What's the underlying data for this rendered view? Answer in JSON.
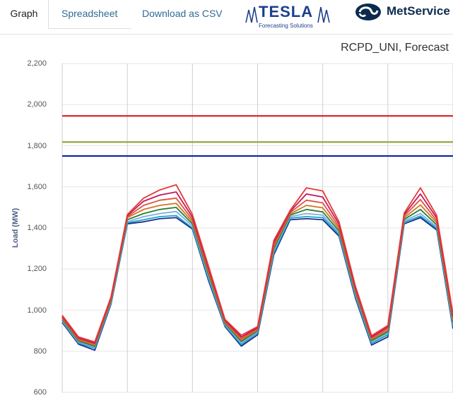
{
  "tabs": [
    {
      "label": "Graph"
    },
    {
      "label": "Spreadsheet"
    },
    {
      "label": "Download as CSV"
    }
  ],
  "logos": {
    "tesla": {
      "name": "TESLA",
      "tagline": "Forecasting Solutions"
    },
    "metservice": {
      "name": "MetService"
    }
  },
  "colors": {
    "tab_link": "#2f6b94",
    "red_line": "#d42a2a",
    "olive_line": "#98a541",
    "blue_line": "#1322a0"
  },
  "chart_data": {
    "type": "line",
    "title": "RCPD_UNI, Forecast",
    "ylabel": "Load (MW)",
    "xlabel": "",
    "ylim": [
      600,
      2200
    ],
    "yticks": [
      "600",
      "800",
      "1,000",
      "1,200",
      "1,400",
      "1,600",
      "1,800",
      "2,000",
      "2,200"
    ],
    "ytick_values": [
      600,
      800,
      1000,
      1200,
      1400,
      1600,
      1800,
      2000,
      2200
    ],
    "grid": true,
    "thresholds": [
      {
        "value": 1945,
        "color": "#d42a2a"
      },
      {
        "value": 1818,
        "color": "#98a541"
      },
      {
        "value": 1750,
        "color": "#1322a0"
      }
    ],
    "x": [
      0,
      3,
      6,
      9,
      12,
      15,
      18,
      21,
      24,
      27,
      30,
      33,
      36,
      39,
      42,
      45,
      48,
      51,
      54,
      57,
      60,
      63,
      66,
      69,
      72
    ],
    "series": [
      {
        "color": "#1a2a8a",
        "values": [
          940,
          835,
          805,
          1030,
          1420,
          1430,
          1445,
          1450,
          1395,
          1140,
          920,
          825,
          880,
          1270,
          1440,
          1445,
          1440,
          1360,
          1060,
          830,
          870,
          1420,
          1450,
          1390,
          910
        ]
      },
      {
        "color": "#1aa3c7",
        "values": [
          945,
          840,
          815,
          1035,
          1425,
          1440,
          1455,
          1460,
          1400,
          1150,
          925,
          832,
          890,
          1280,
          1448,
          1455,
          1450,
          1368,
          1070,
          838,
          880,
          1428,
          1458,
          1398,
          920
        ]
      },
      {
        "color": "#7aaee8",
        "values": [
          950,
          845,
          820,
          1040,
          1430,
          1455,
          1470,
          1480,
          1410,
          1160,
          930,
          840,
          895,
          1290,
          1455,
          1470,
          1462,
          1375,
          1078,
          845,
          888,
          1435,
          1470,
          1405,
          930
        ]
      },
      {
        "color": "#2e7d32",
        "values": [
          955,
          850,
          825,
          1045,
          1440,
          1470,
          1490,
          1500,
          1420,
          1170,
          935,
          848,
          900,
          1300,
          1462,
          1490,
          1478,
          1385,
          1086,
          852,
          895,
          1442,
          1490,
          1415,
          940
        ]
      },
      {
        "color": "#cc7722",
        "values": [
          960,
          855,
          830,
          1050,
          1450,
          1490,
          1510,
          1520,
          1430,
          1180,
          940,
          855,
          905,
          1310,
          1468,
          1510,
          1498,
          1395,
          1094,
          858,
          902,
          1450,
          1512,
          1425,
          950
        ]
      },
      {
        "color": "#e05040",
        "values": [
          965,
          860,
          835,
          1055,
          1455,
          1510,
          1535,
          1545,
          1440,
          1190,
          945,
          862,
          910,
          1320,
          1475,
          1535,
          1522,
          1405,
          1102,
          864,
          910,
          1458,
          1538,
          1435,
          960
        ]
      },
      {
        "color": "#c2185b",
        "values": [
          970,
          865,
          840,
          1060,
          1460,
          1530,
          1560,
          1575,
          1452,
          1200,
          950,
          870,
          915,
          1330,
          1480,
          1565,
          1550,
          1418,
          1110,
          870,
          918,
          1465,
          1565,
          1448,
          970
        ]
      },
      {
        "color": "#e53935",
        "values": [
          975,
          870,
          845,
          1065,
          1465,
          1545,
          1585,
          1610,
          1465,
          1210,
          955,
          878,
          920,
          1340,
          1485,
          1595,
          1580,
          1430,
          1118,
          876,
          925,
          1472,
          1595,
          1460,
          980
        ]
      }
    ]
  }
}
